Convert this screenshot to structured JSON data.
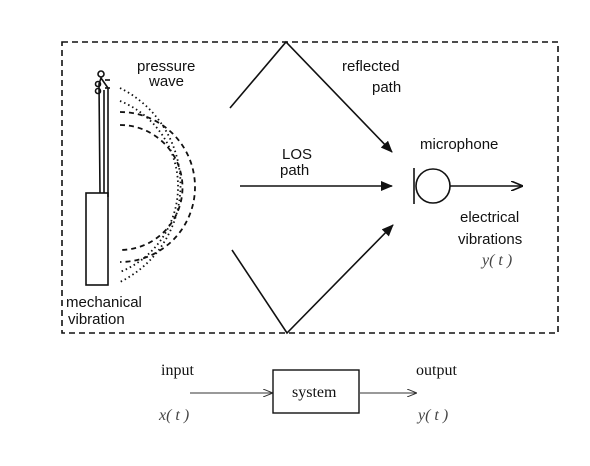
{
  "labels": {
    "pressure": "pressure",
    "wave": "wave",
    "reflected": "reflected",
    "path_reflected": "path",
    "los": "LOS",
    "path_los": "path",
    "microphone": "microphone",
    "electrical": "electrical",
    "vibrations": "vibrations",
    "y_t_top": "y( t )",
    "mechanical": "mechanical",
    "vibration": "vibration"
  },
  "system_diagram": {
    "input_label": "input",
    "input_signal": "x( t )",
    "system_label": "system",
    "output_label": "output",
    "output_signal": "y( t )"
  }
}
